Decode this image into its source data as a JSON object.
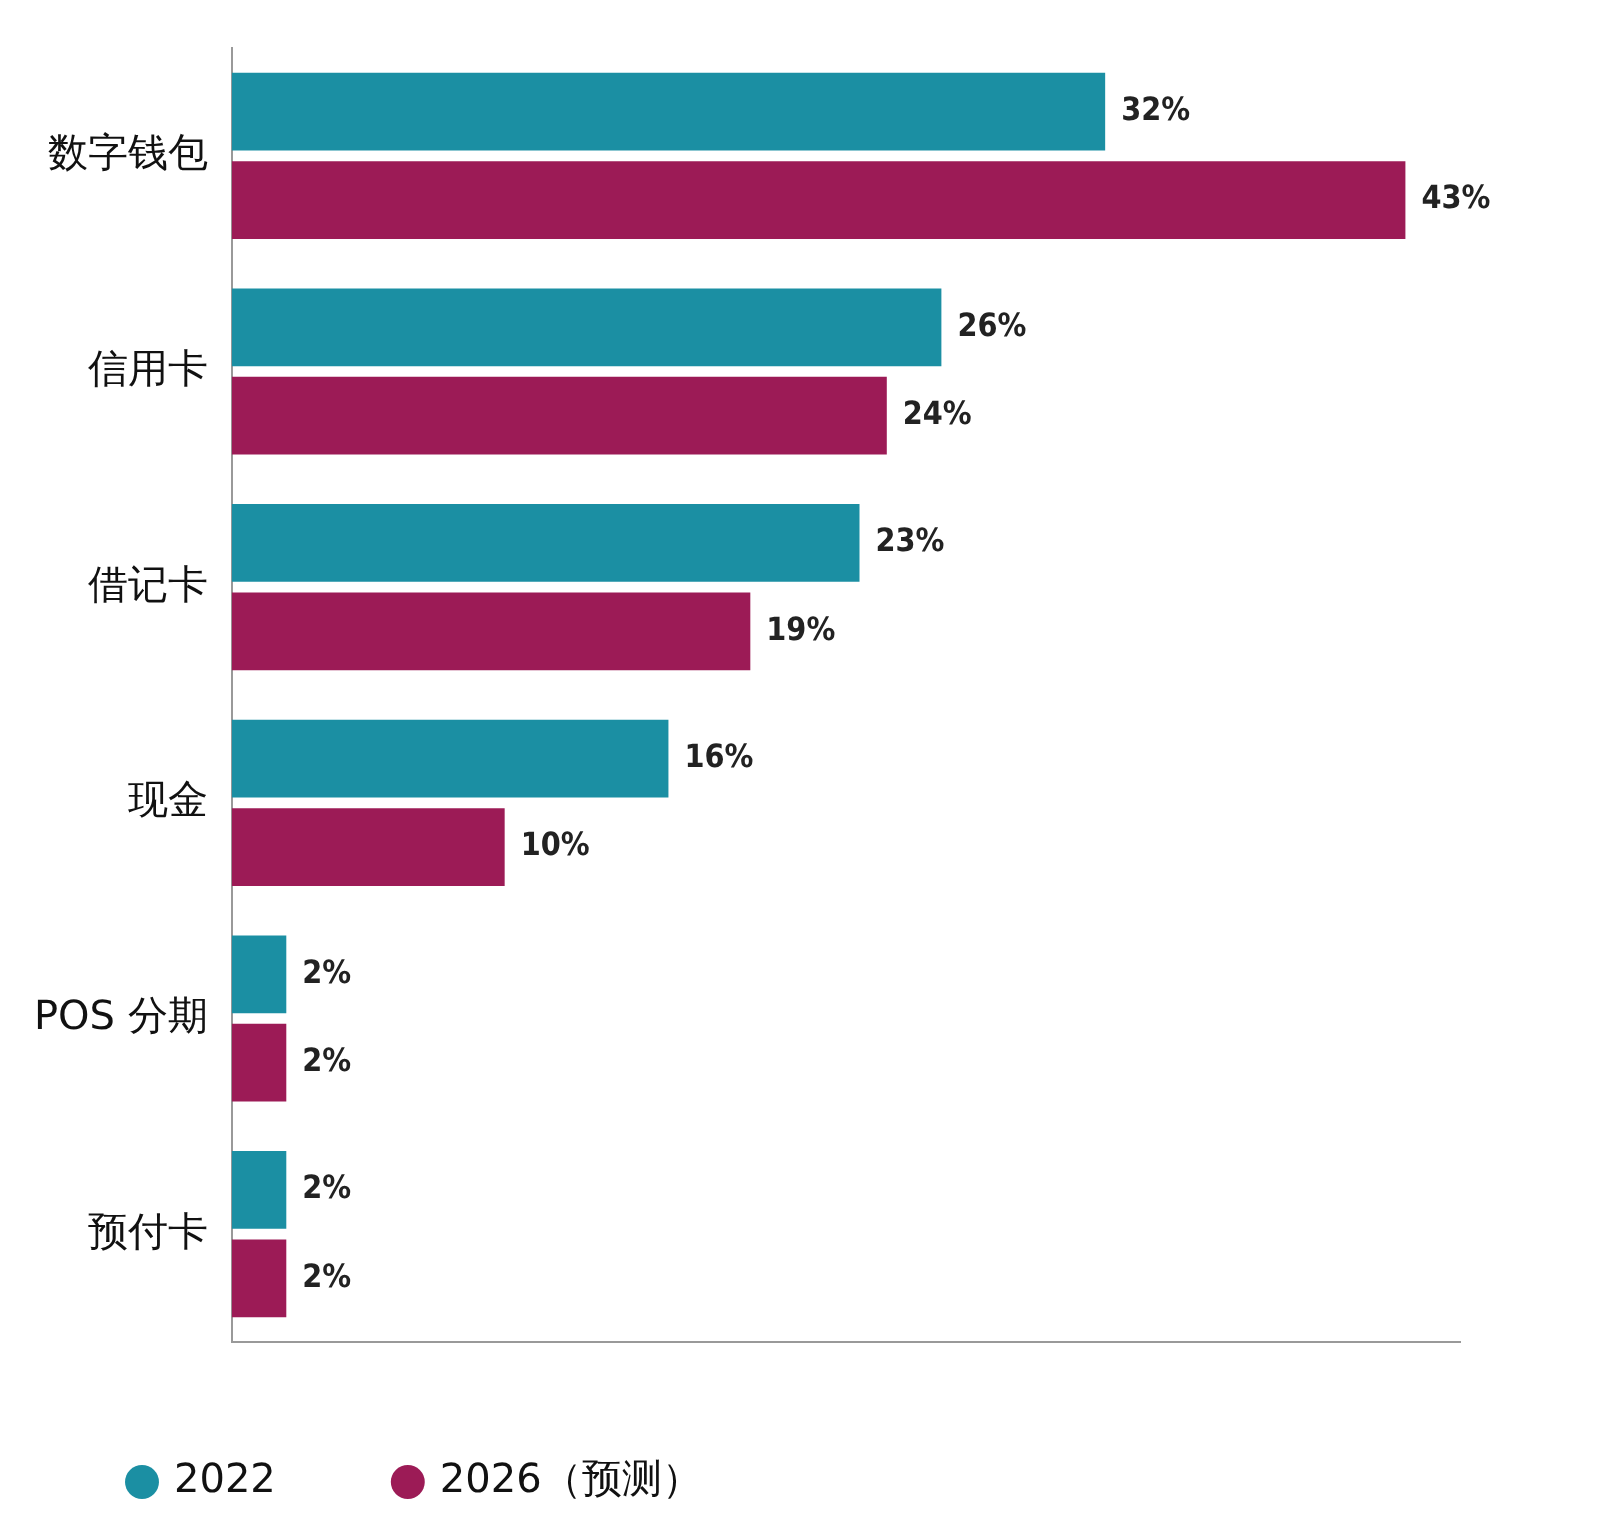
{
  "chart_data": {
    "type": "bar",
    "orientation": "horizontal",
    "categories": [
      "数字钱包",
      "信用卡",
      "借记卡",
      "现金",
      "POS 分期",
      "预付卡"
    ],
    "series": [
      {
        "name": "2022",
        "color": "#1b8fa3",
        "values": [
          32,
          26,
          23,
          16,
          2,
          2
        ],
        "value_labels": [
          "32%",
          "26%",
          "23%",
          "16%",
          "2%",
          "2%"
        ]
      },
      {
        "name": "2026（预测）",
        "color": "#9c1b56",
        "values": [
          43,
          24,
          19,
          10,
          2,
          2
        ],
        "value_labels": [
          "43%",
          "24%",
          "19%",
          "10%",
          "2%",
          "2%"
        ]
      }
    ],
    "grid": false,
    "legend": "bottom left",
    "tick_labels": "y"
  }
}
